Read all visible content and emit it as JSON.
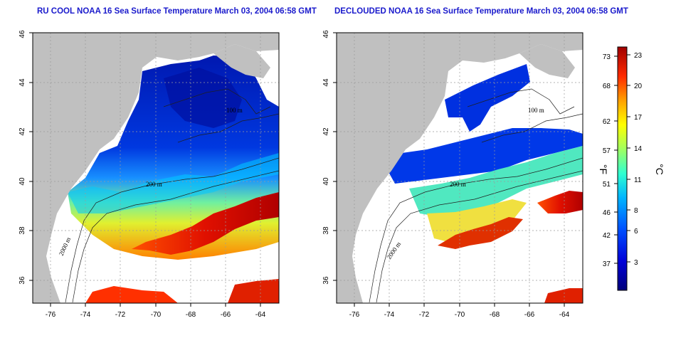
{
  "panels": [
    {
      "title": "RU COOL NOAA 16 Sea Surface Temperature March 03, 2004 06:58 GMT"
    },
    {
      "title": "DECLOUDED NOAA 16 Sea Surface Temperature March 03, 2004 06:58 GMT"
    }
  ],
  "axes": {
    "x_ticks": [
      "-76",
      "-74",
      "-72",
      "-70",
      "-68",
      "-66",
      "-64"
    ],
    "y_ticks": [
      "36",
      "38",
      "40",
      "42",
      "44",
      "46"
    ],
    "lon_range": [
      -77,
      -63
    ],
    "lat_range": [
      35,
      46
    ]
  },
  "contour_labels": [
    "100 m",
    "200 m",
    "2000 m",
    "100 m",
    "200 m",
    "2000 m"
  ],
  "colorbar": {
    "fahrenheit_label": "°F",
    "celsius_label": "°C",
    "fahrenheit_ticks": [
      "73",
      "68",
      "62",
      "57",
      "51",
      "46",
      "42",
      "37"
    ],
    "celsius_ticks": [
      "23",
      "20",
      "17",
      "14",
      "11",
      "8",
      "6",
      "3"
    ],
    "range_c": [
      0,
      23.5
    ]
  },
  "colors": {
    "land": "#c0c0c0",
    "cloud": "#ffffff",
    "title": "#1a1acc"
  }
}
